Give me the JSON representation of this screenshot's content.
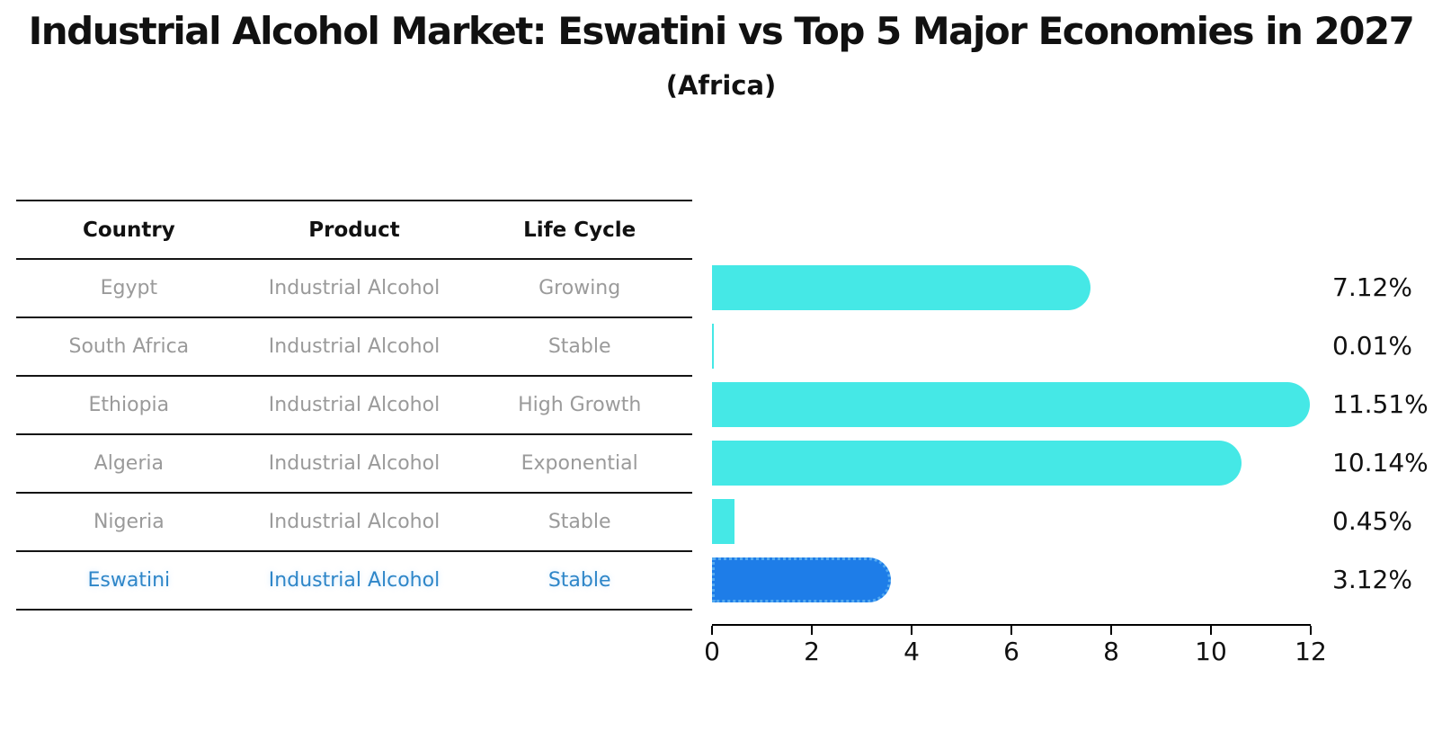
{
  "title": "Industrial Alcohol Market: Eswatini vs Top 5 Major Economies in 2027",
  "subtitle": "(Africa)",
  "table": {
    "headers": [
      "Country",
      "Product",
      "Life Cycle"
    ],
    "rows": [
      {
        "country": "Egypt",
        "product": "Industrial Alcohol",
        "life_cycle": "Growing"
      },
      {
        "country": "South Africa",
        "product": "Industrial Alcohol",
        "life_cycle": "Stable"
      },
      {
        "country": "Ethiopia",
        "product": "Industrial Alcohol",
        "life_cycle": "High Growth"
      },
      {
        "country": "Algeria",
        "product": "Industrial Alcohol",
        "life_cycle": "Exponential"
      },
      {
        "country": "Nigeria",
        "product": "Industrial Alcohol",
        "life_cycle": "Stable"
      },
      {
        "country": "Eswatini",
        "product": "Industrial Alcohol",
        "life_cycle": "Stable"
      }
    ],
    "highlight_row": "Eswatini"
  },
  "chart_data": {
    "type": "bar",
    "orientation": "horizontal",
    "title": "Industrial Alcohol Market: Eswatini vs Top 5 Major Economies in 2027",
    "subtitle": "(Africa)",
    "categories": [
      "Egypt",
      "South Africa",
      "Ethiopia",
      "Algeria",
      "Nigeria",
      "Eswatini"
    ],
    "values": [
      7.12,
      0.01,
      11.51,
      10.14,
      0.45,
      3.12
    ],
    "value_labels": [
      "7.12%",
      "0.01%",
      "11.51%",
      "10.14%",
      "0.45%",
      "3.12%"
    ],
    "unit": "%",
    "xlim": [
      0,
      12
    ],
    "x_tick_labels": [
      "0",
      "2",
      "4",
      "6",
      "8",
      "10",
      "12"
    ],
    "highlight_category": "Eswatini",
    "highlight_index": 5,
    "grid": false,
    "legend": false,
    "colors": {
      "bar": "#45E8E6",
      "highlight_bar": "#1E7DE8",
      "highlight_border": "#55AAF0",
      "highlight_text": "#2E86C8",
      "table_text": "#9A9A9A",
      "header_text": "#111111",
      "axis": "#000000"
    }
  }
}
